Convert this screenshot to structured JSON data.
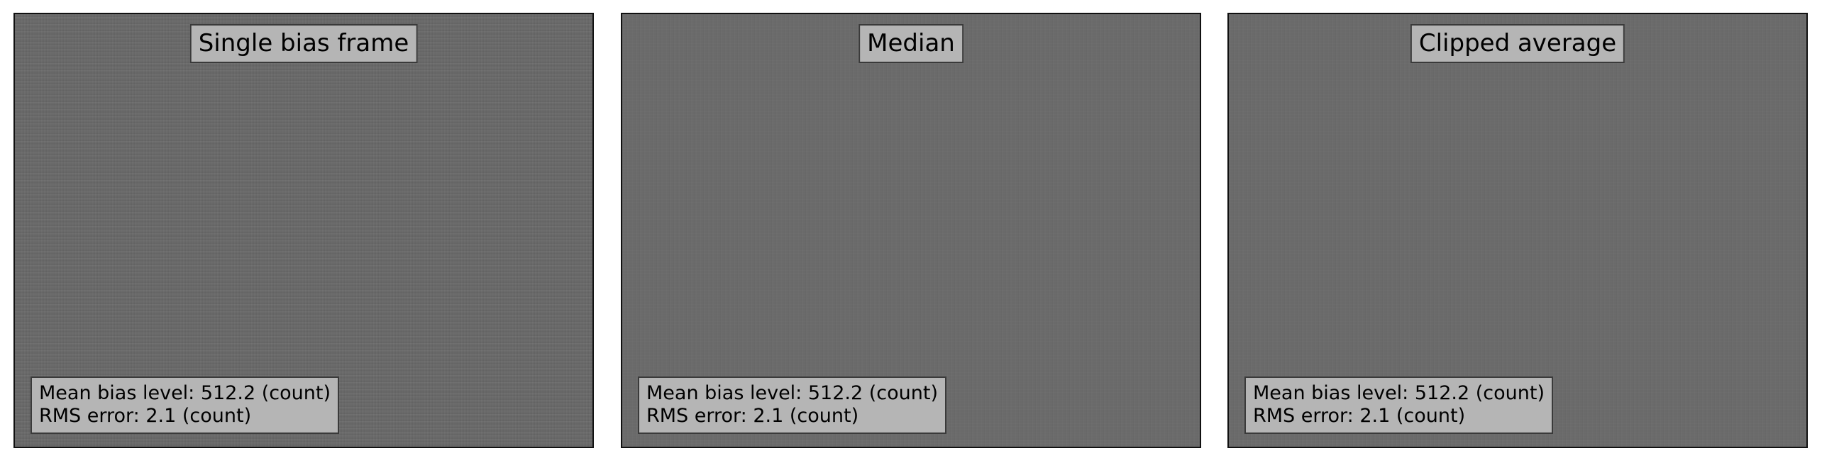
{
  "panels": [
    {
      "title": "Single bias frame",
      "mean_label": "Mean bias level: 512.2 (count)",
      "rms_label": "RMS error: 2.1 (count)"
    },
    {
      "title": "Median",
      "mean_label": "Mean bias level: 512.2 (count)",
      "rms_label": "RMS error: 2.1 (count)"
    },
    {
      "title": "Clipped average",
      "mean_label": "Mean bias level: 512.2 (count)",
      "rms_label": "RMS error: 2.1 (count)"
    }
  ],
  "colors": {
    "image_gray": "#6a6a6a",
    "label_box": "#b5b5b5",
    "label_border": "#3a3a3a",
    "frame_border": "#111111"
  }
}
